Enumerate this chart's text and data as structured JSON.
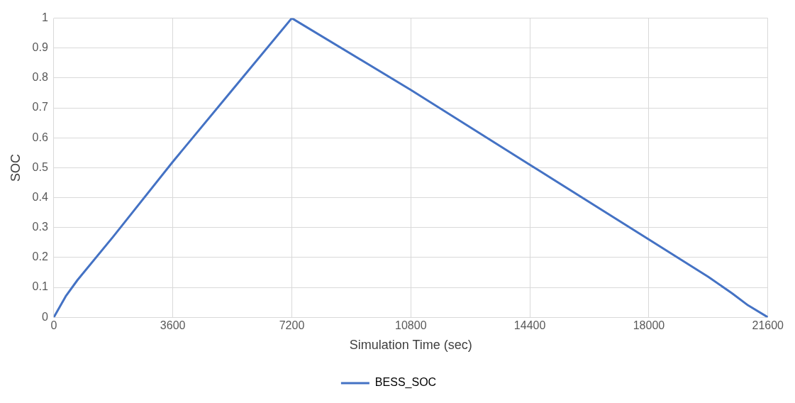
{
  "chart_data": {
    "type": "line",
    "xlabel": "Simulation Time (sec)",
    "ylabel": "SOC",
    "x": [
      0,
      360,
      720,
      1800,
      3600,
      5400,
      7200,
      10800,
      14400,
      18000,
      19800,
      20520,
      21000,
      21600
    ],
    "series": [
      {
        "name": "BESS_SOC",
        "color": "#4472c4",
        "values": [
          0,
          0.07,
          0.125,
          0.27,
          0.52,
          0.76,
          1,
          0.76,
          0.51,
          0.26,
          0.135,
          0.08,
          0.04,
          0
        ]
      }
    ],
    "xlim": [
      0,
      21600
    ],
    "xticks": [
      0,
      3600,
      7200,
      10800,
      14400,
      18000,
      21600
    ],
    "ylim": [
      0,
      1
    ],
    "yticks": [
      0,
      0.1,
      0.2,
      0.3,
      0.4,
      0.5,
      0.6,
      0.7,
      0.8,
      0.9,
      1
    ],
    "grid": true,
    "legend": "bottom",
    "marker": "none",
    "line_style": "solid"
  }
}
